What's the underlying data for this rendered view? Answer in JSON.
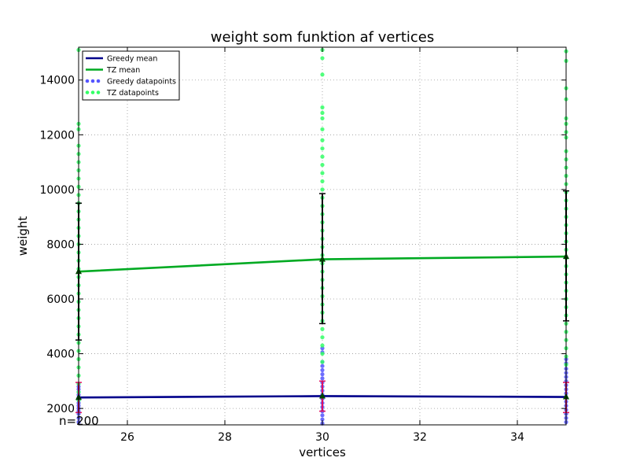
{
  "chart_data": {
    "type": "line",
    "title": "weight som funktion af vertices",
    "xlabel": "vertices",
    "ylabel": "weight",
    "annotation": "n=200",
    "xlim": [
      25,
      35
    ],
    "ylim": [
      1400,
      15200
    ],
    "x_ticks": [
      26,
      28,
      30,
      32,
      34
    ],
    "y_ticks": [
      2000,
      4000,
      6000,
      8000,
      10000,
      12000,
      14000
    ],
    "grid": true,
    "legend_position": "top-left",
    "x": [
      25,
      30,
      35
    ],
    "series": [
      {
        "name": "Greedy mean",
        "color": "#00008b",
        "values": [
          2400,
          2450,
          2420
        ],
        "error": [
          [
            1850,
            2950
          ],
          [
            1900,
            3000
          ],
          [
            1850,
            2950
          ]
        ]
      },
      {
        "name": "TZ mean",
        "color": "#00aa22",
        "values": [
          7000,
          7450,
          7550
        ],
        "error": [
          [
            4500,
            9500
          ],
          [
            5100,
            9850
          ],
          [
            5200,
            9950
          ]
        ]
      }
    ],
    "scatter": [
      {
        "name": "Greedy datapoints",
        "color": "#5555ff",
        "points": [
          [
            25,
            1500
          ],
          [
            25,
            1650
          ],
          [
            25,
            1800
          ],
          [
            25,
            1900
          ],
          [
            25,
            2000
          ],
          [
            25,
            2100
          ],
          [
            25,
            2200
          ],
          [
            25,
            2300
          ],
          [
            25,
            2400
          ],
          [
            25,
            2500
          ],
          [
            25,
            2600
          ],
          [
            25,
            2700
          ],
          [
            25,
            2800
          ],
          [
            25,
            2900
          ],
          [
            30,
            1450
          ],
          [
            30,
            1600
          ],
          [
            30,
            1750
          ],
          [
            30,
            1900
          ],
          [
            30,
            2050
          ],
          [
            30,
            2200
          ],
          [
            30,
            2350
          ],
          [
            30,
            2500
          ],
          [
            30,
            2650
          ],
          [
            30,
            2800
          ],
          [
            30,
            2950
          ],
          [
            30,
            3100
          ],
          [
            30,
            3250
          ],
          [
            30,
            3400
          ],
          [
            30,
            3550
          ],
          [
            30,
            3700
          ],
          [
            30,
            4050
          ],
          [
            30,
            4200
          ],
          [
            35,
            1500
          ],
          [
            35,
            1650
          ],
          [
            35,
            1800
          ],
          [
            35,
            1950
          ],
          [
            35,
            2100
          ],
          [
            35,
            2250
          ],
          [
            35,
            2400
          ],
          [
            35,
            2550
          ],
          [
            35,
            2700
          ],
          [
            35,
            2850
          ],
          [
            35,
            3000
          ],
          [
            35,
            3150
          ],
          [
            35,
            3300
          ],
          [
            35,
            3450
          ],
          [
            35,
            3650
          ],
          [
            35,
            3800
          ]
        ]
      },
      {
        "name": "TZ datapoints",
        "color": "#33ff66",
        "points": [
          [
            25,
            2300
          ],
          [
            25,
            2600
          ],
          [
            25,
            2900
          ],
          [
            25,
            3200
          ],
          [
            25,
            3500
          ],
          [
            25,
            3800
          ],
          [
            25,
            4100
          ],
          [
            25,
            4400
          ],
          [
            25,
            4700
          ],
          [
            25,
            5000
          ],
          [
            25,
            5300
          ],
          [
            25,
            5600
          ],
          [
            25,
            5900
          ],
          [
            25,
            6200
          ],
          [
            25,
            6500
          ],
          [
            25,
            6800
          ],
          [
            25,
            7100
          ],
          [
            25,
            7400
          ],
          [
            25,
            7700
          ],
          [
            25,
            8000
          ],
          [
            25,
            8300
          ],
          [
            25,
            8600
          ],
          [
            25,
            8900
          ],
          [
            25,
            9200
          ],
          [
            25,
            9500
          ],
          [
            25,
            9800
          ],
          [
            25,
            10100
          ],
          [
            25,
            10400
          ],
          [
            25,
            10700
          ],
          [
            25,
            11000
          ],
          [
            25,
            11300
          ],
          [
            25,
            11600
          ],
          [
            25,
            12200
          ],
          [
            25,
            12400
          ],
          [
            25,
            15100
          ],
          [
            30,
            3700
          ],
          [
            30,
            4000
          ],
          [
            30,
            4300
          ],
          [
            30,
            4600
          ],
          [
            30,
            4900
          ],
          [
            30,
            5200
          ],
          [
            30,
            5500
          ],
          [
            30,
            5800
          ],
          [
            30,
            6100
          ],
          [
            30,
            6400
          ],
          [
            30,
            6700
          ],
          [
            30,
            7000
          ],
          [
            30,
            7300
          ],
          [
            30,
            7600
          ],
          [
            30,
            7900
          ],
          [
            30,
            8200
          ],
          [
            30,
            8500
          ],
          [
            30,
            8800
          ],
          [
            30,
            9100
          ],
          [
            30,
            9400
          ],
          [
            30,
            9700
          ],
          [
            30,
            10000
          ],
          [
            30,
            10300
          ],
          [
            30,
            10600
          ],
          [
            30,
            10900
          ],
          [
            30,
            11200
          ],
          [
            30,
            11500
          ],
          [
            30,
            11800
          ],
          [
            30,
            12200
          ],
          [
            30,
            12600
          ],
          [
            30,
            12800
          ],
          [
            30,
            13000
          ],
          [
            30,
            14200
          ],
          [
            30,
            14800
          ],
          [
            30,
            15100
          ],
          [
            35,
            3600
          ],
          [
            35,
            3900
          ],
          [
            35,
            4200
          ],
          [
            35,
            4500
          ],
          [
            35,
            4800
          ],
          [
            35,
            5100
          ],
          [
            35,
            5400
          ],
          [
            35,
            5700
          ],
          [
            35,
            6000
          ],
          [
            35,
            6300
          ],
          [
            35,
            6600
          ],
          [
            35,
            6900
          ],
          [
            35,
            7200
          ],
          [
            35,
            7500
          ],
          [
            35,
            7800
          ],
          [
            35,
            8100
          ],
          [
            35,
            8400
          ],
          [
            35,
            8700
          ],
          [
            35,
            9000
          ],
          [
            35,
            9300
          ],
          [
            35,
            9600
          ],
          [
            35,
            9900
          ],
          [
            35,
            10200
          ],
          [
            35,
            10500
          ],
          [
            35,
            10800
          ],
          [
            35,
            11100
          ],
          [
            35,
            11400
          ],
          [
            35,
            11900
          ],
          [
            35,
            12100
          ],
          [
            35,
            12400
          ],
          [
            35,
            12600
          ],
          [
            35,
            13300
          ],
          [
            35,
            13700
          ],
          [
            35,
            14700
          ],
          [
            35,
            15050
          ]
        ]
      }
    ]
  }
}
